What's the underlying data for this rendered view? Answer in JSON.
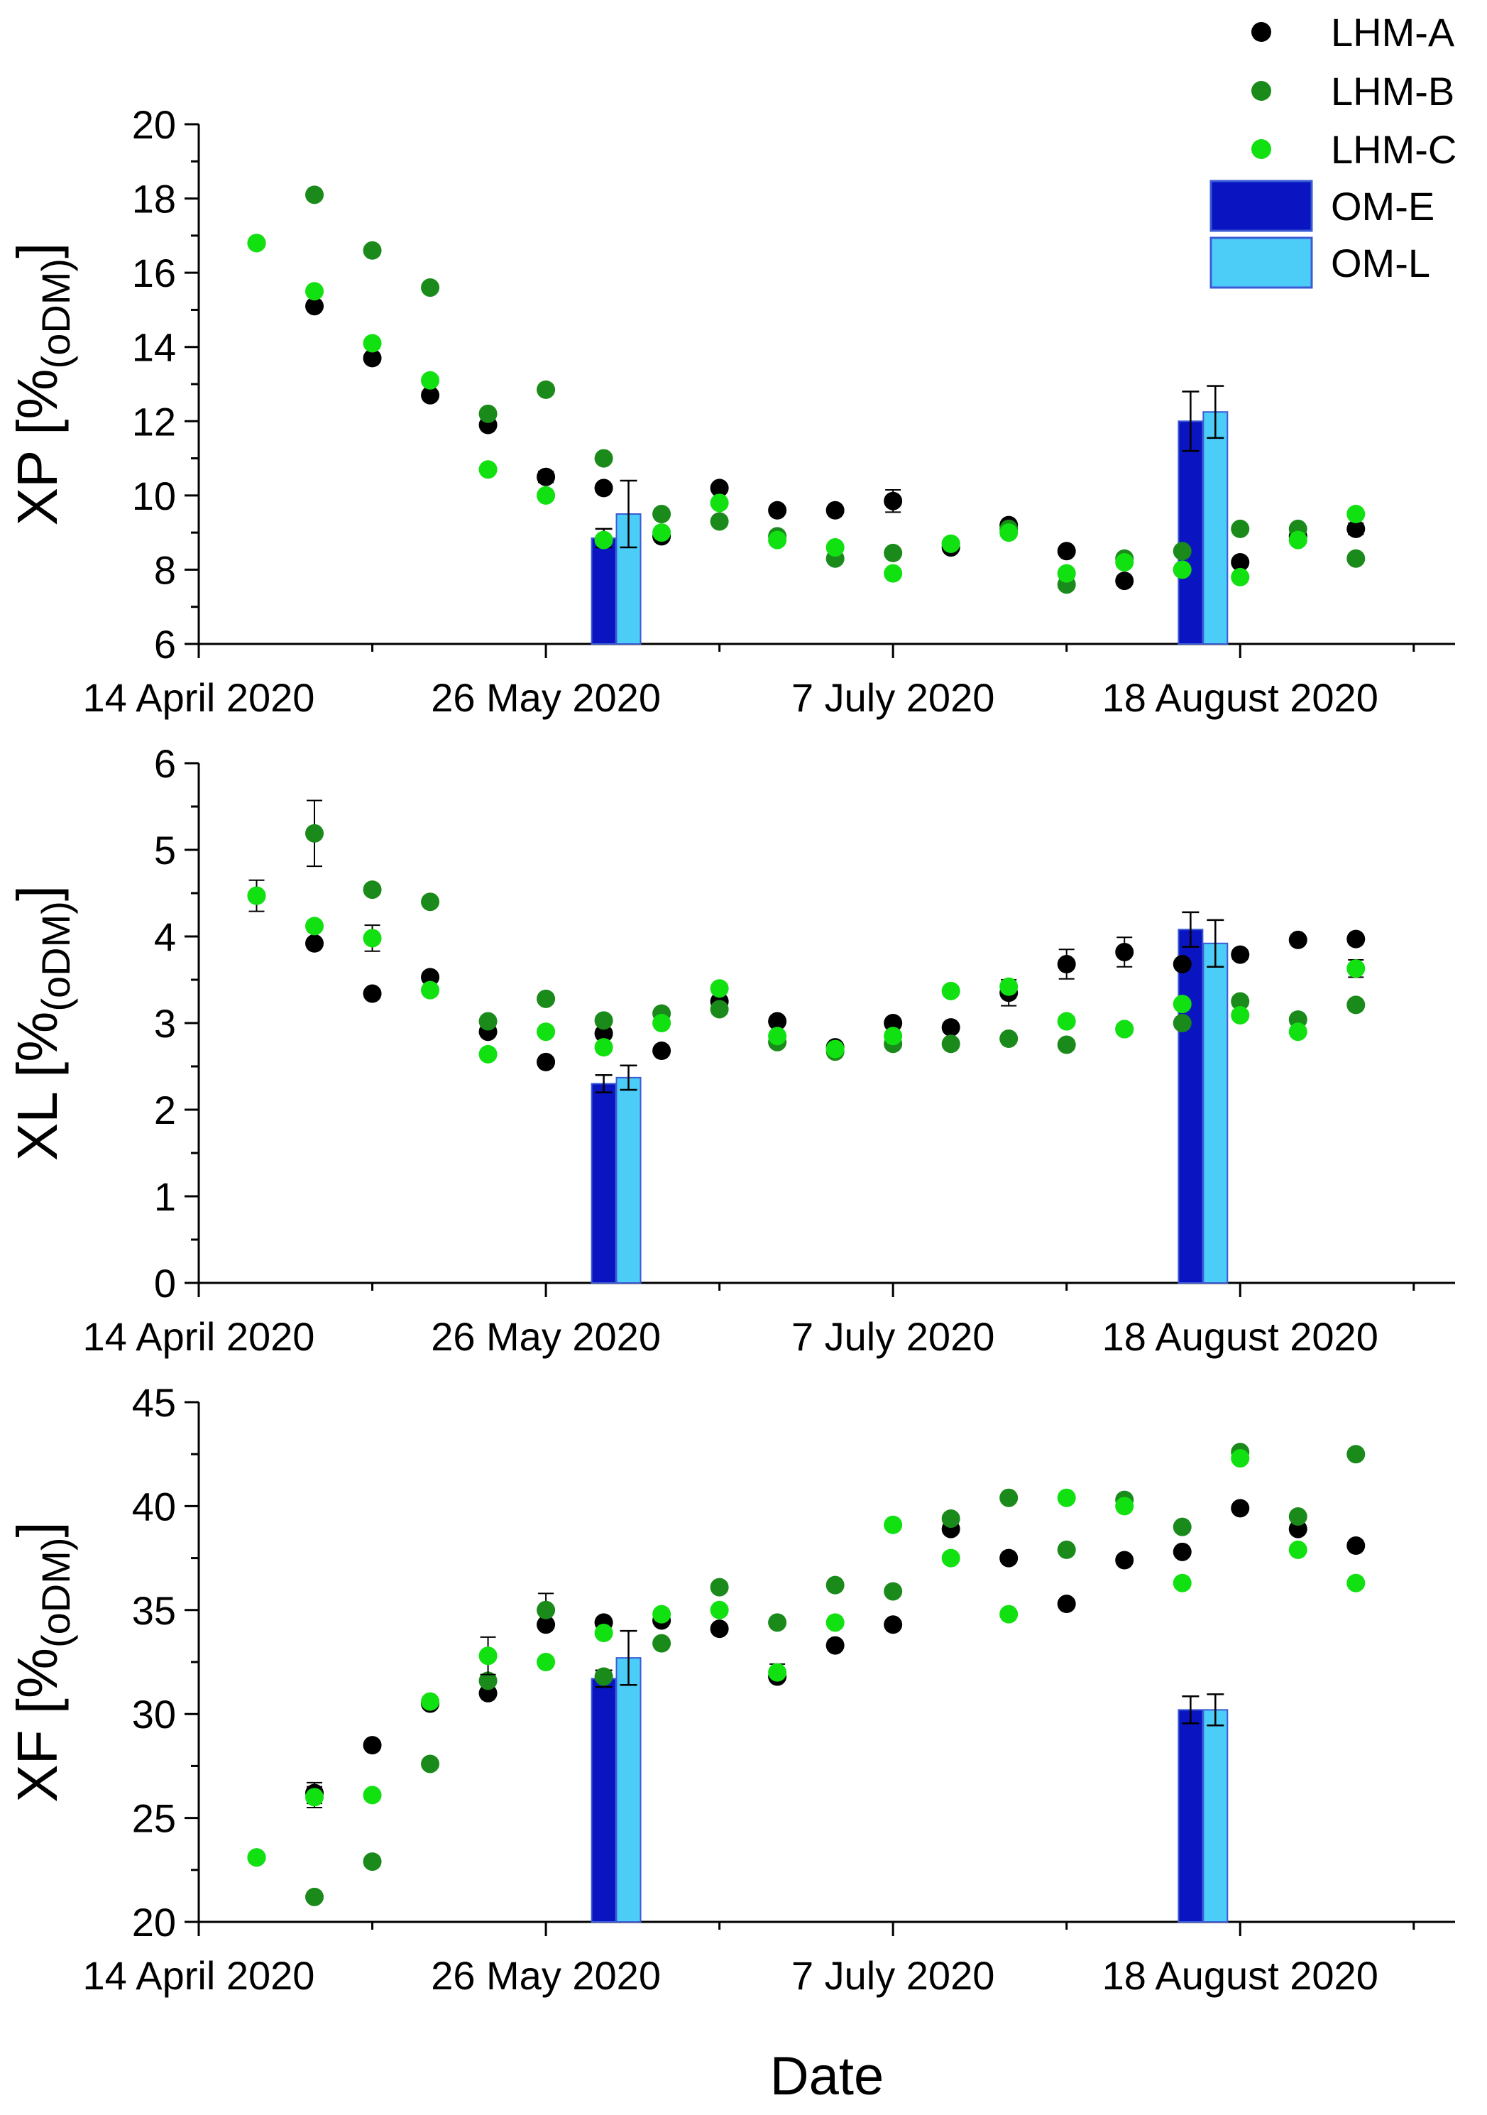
{
  "legend": [
    {
      "label": "LHM-A",
      "kind": "marker",
      "color": "#000000"
    },
    {
      "label": "LHM-B",
      "kind": "marker",
      "color": "#1a8a1a"
    },
    {
      "label": "LHM-C",
      "kind": "marker",
      "color": "#11e011"
    },
    {
      "label": "OM-E",
      "kind": "bar",
      "color": "#0a14c0"
    },
    {
      "label": "OM-L",
      "kind": "bar",
      "color": "#4ccdf8"
    }
  ],
  "colors": {
    "lhm_a": "#000000",
    "lhm_b": "#1a8a1a",
    "lhm_c": "#11e011",
    "om_e": "#0a14c0",
    "om_l": "#4ccdf8",
    "bar_stroke": "#3b5bd6"
  },
  "xlabel": "Date",
  "chart_data": [
    {
      "type": "scatter",
      "name": "XP",
      "ylabel_main": "XP [%",
      "ylabel_sub": "(oDM)",
      "ylabel_end": "]",
      "ylim": [
        6,
        20
      ],
      "yticks": [
        6,
        8,
        10,
        12,
        14,
        16,
        18,
        20
      ],
      "xlim_days": [
        0,
        152
      ],
      "xtick_days": [
        0,
        42,
        84,
        126
      ],
      "xtick_labels": [
        "14 April 2020",
        "26 May 2020",
        "7 July 2020",
        "18 August 2020"
      ],
      "x_days": [
        7,
        14,
        21,
        28,
        35,
        42,
        49,
        56,
        63,
        70,
        77,
        84,
        91,
        98,
        105,
        112,
        119,
        126,
        133,
        140
      ],
      "series": [
        {
          "name": "LHM-A",
          "values": [
            null,
            15.1,
            13.7,
            12.7,
            11.9,
            10.5,
            10.2,
            8.9,
            10.2,
            9.6,
            9.6,
            9.85,
            8.6,
            9.2,
            8.5,
            7.7,
            8.0,
            8.2,
            8.9,
            9.1
          ],
          "errors": [
            0,
            0.1,
            0.1,
            0.1,
            0.1,
            0.15,
            0.1,
            0.1,
            0.1,
            0.1,
            0.1,
            0.3,
            0.1,
            0.1,
            0.1,
            0.1,
            0.1,
            0.1,
            0.1,
            0.15
          ]
        },
        {
          "name": "LHM-B",
          "values": [
            16.8,
            18.1,
            16.6,
            15.6,
            12.2,
            12.85,
            11.0,
            9.5,
            9.3,
            8.9,
            8.3,
            8.45,
            8.7,
            9.1,
            7.6,
            8.3,
            8.5,
            9.1,
            9.1,
            8.3
          ],
          "errors": [
            0.1,
            0.1,
            0.1,
            0.1,
            0.1,
            0.1,
            0.1,
            0.1,
            0.1,
            0.1,
            0.1,
            0.1,
            0.1,
            0.1,
            0.1,
            0.1,
            0.1,
            0.1,
            0.1,
            0.1
          ]
        },
        {
          "name": "LHM-C",
          "values": [
            16.8,
            15.5,
            14.1,
            13.1,
            10.7,
            10.0,
            8.8,
            9.0,
            9.8,
            8.8,
            8.6,
            7.9,
            8.7,
            9.0,
            7.9,
            8.2,
            8.0,
            7.8,
            8.8,
            9.5
          ],
          "errors": [
            0.1,
            0.1,
            0.1,
            0.1,
            0.1,
            0.1,
            0.1,
            0.1,
            0.1,
            0.1,
            0.1,
            0.1,
            0.1,
            0.1,
            0.1,
            0.1,
            0.1,
            0.1,
            0.1,
            0.1
          ]
        }
      ],
      "bars": [
        {
          "name": "OM-E",
          "x_days": 49,
          "value": 8.85,
          "error": 0.25
        },
        {
          "name": "OM-L",
          "x_days": 52,
          "value": 9.5,
          "error": 0.9
        },
        {
          "name": "OM-E",
          "x_days": 120,
          "value": 12.0,
          "error": 0.8
        },
        {
          "name": "OM-L",
          "x_days": 123,
          "value": 12.25,
          "error": 0.7
        }
      ]
    },
    {
      "type": "scatter",
      "name": "XL",
      "ylabel_main": "XL [%",
      "ylabel_sub": "(oDM)",
      "ylabel_end": "]",
      "ylim": [
        0,
        6
      ],
      "yticks": [
        0,
        1,
        2,
        3,
        4,
        5,
        6
      ],
      "xlim_days": [
        0,
        152
      ],
      "xtick_days": [
        0,
        42,
        84,
        126
      ],
      "xtick_labels": [
        "14 April 2020",
        "26 May 2020",
        "7 July 2020",
        "18 August 2020"
      ],
      "x_days": [
        7,
        14,
        21,
        28,
        35,
        42,
        49,
        56,
        63,
        70,
        77,
        84,
        91,
        98,
        105,
        112,
        119,
        126,
        133,
        140
      ],
      "series": [
        {
          "name": "LHM-A",
          "values": [
            null,
            3.92,
            3.34,
            3.53,
            2.9,
            2.55,
            2.88,
            2.68,
            3.25,
            3.02,
            2.72,
            3.0,
            2.95,
            3.35,
            3.68,
            3.82,
            3.68,
            3.79,
            3.96,
            3.97
          ],
          "errors": [
            0,
            0.05,
            0.05,
            0.05,
            0.05,
            0.05,
            0.05,
            0.05,
            0.05,
            0.05,
            0.05,
            0.05,
            0.05,
            0.15,
            0.17,
            0.17,
            0.05,
            0.05,
            0.05,
            0.05
          ]
        },
        {
          "name": "LHM-B",
          "values": [
            4.47,
            5.19,
            4.54,
            4.4,
            3.02,
            3.28,
            3.03,
            3.11,
            3.16,
            2.78,
            2.67,
            2.76,
            2.76,
            2.82,
            2.75,
            2.93,
            3.0,
            3.25,
            3.04,
            3.21
          ],
          "errors": [
            0.05,
            0.38,
            0.05,
            0.05,
            0.05,
            0.05,
            0.05,
            0.05,
            0.05,
            0.05,
            0.05,
            0.05,
            0.05,
            0.05,
            0.05,
            0.05,
            0.05,
            0.05,
            0.05,
            0.05
          ]
        },
        {
          "name": "LHM-C",
          "values": [
            4.47,
            4.12,
            3.98,
            3.38,
            2.64,
            2.9,
            2.72,
            3.0,
            3.4,
            2.85,
            2.7,
            2.85,
            3.37,
            3.42,
            3.02,
            2.93,
            3.22,
            3.09,
            2.9,
            3.63
          ],
          "errors": [
            0.18,
            0.05,
            0.15,
            0.05,
            0.05,
            0.05,
            0.05,
            0.05,
            0.05,
            0.05,
            0.05,
            0.05,
            0.05,
            0.05,
            0.05,
            0.05,
            0.05,
            0.05,
            0.05,
            0.1
          ]
        }
      ],
      "bars": [
        {
          "name": "OM-E",
          "x_days": 49,
          "value": 2.3,
          "error": 0.1
        },
        {
          "name": "OM-L",
          "x_days": 52,
          "value": 2.37,
          "error": 0.14
        },
        {
          "name": "OM-E",
          "x_days": 120,
          "value": 4.08,
          "error": 0.2
        },
        {
          "name": "OM-L",
          "x_days": 123,
          "value": 3.92,
          "error": 0.27
        }
      ]
    },
    {
      "type": "scatter",
      "name": "XF",
      "ylabel_main": "XF [%",
      "ylabel_sub": "(oDM)",
      "ylabel_end": "]",
      "ylim": [
        20,
        45
      ],
      "yticks": [
        20,
        25,
        30,
        35,
        40,
        45
      ],
      "xlim_days": [
        0,
        152
      ],
      "xtick_days": [
        0,
        42,
        84,
        126
      ],
      "xtick_labels": [
        "14 April 2020",
        "26 May 2020",
        "7 July 2020",
        "18 August 2020"
      ],
      "x_days": [
        7,
        14,
        21,
        28,
        35,
        42,
        49,
        56,
        63,
        70,
        77,
        84,
        91,
        98,
        105,
        112,
        119,
        126,
        133,
        140
      ],
      "series": [
        {
          "name": "LHM-A",
          "values": [
            null,
            26.2,
            28.5,
            30.5,
            31.0,
            34.3,
            34.4,
            34.5,
            34.1,
            31.8,
            33.3,
            34.3,
            38.9,
            37.5,
            35.3,
            37.4,
            37.8,
            39.9,
            38.9,
            38.1
          ],
          "errors": [
            0,
            0.5,
            0.15,
            0.15,
            0.15,
            0.15,
            0.15,
            0.15,
            0.15,
            0.15,
            0.15,
            0.15,
            0.15,
            0.15,
            0.15,
            0.15,
            0.15,
            0.15,
            0.15,
            0.15
          ]
        },
        {
          "name": "LHM-B",
          "values": [
            23.1,
            21.2,
            22.9,
            27.6,
            31.6,
            35.0,
            31.8,
            33.4,
            36.1,
            34.4,
            36.2,
            35.9,
            39.4,
            40.4,
            37.9,
            40.3,
            39.0,
            42.6,
            39.5,
            42.5
          ],
          "errors": [
            0.15,
            0.15,
            0.15,
            0.15,
            0.15,
            0.8,
            0.15,
            0.15,
            0.15,
            0.15,
            0.15,
            0.15,
            0.15,
            0.15,
            0.15,
            0.15,
            0.15,
            0.15,
            0.15,
            0.15
          ]
        },
        {
          "name": "LHM-C",
          "values": [
            23.1,
            26.0,
            26.1,
            30.6,
            32.8,
            32.5,
            33.9,
            34.8,
            35.0,
            32.0,
            34.4,
            39.1,
            37.5,
            34.8,
            40.4,
            40.0,
            36.3,
            42.3,
            37.9,
            36.3
          ],
          "errors": [
            0.15,
            0.5,
            0.15,
            0.15,
            0.9,
            0.15,
            0.15,
            0.15,
            0.15,
            0.4,
            0.15,
            0.15,
            0.15,
            0.15,
            0.15,
            0.15,
            0.15,
            0.15,
            0.15,
            0.15
          ]
        }
      ],
      "bars": [
        {
          "name": "OM-E",
          "x_days": 49,
          "value": 31.7,
          "error": 0.4
        },
        {
          "name": "OM-L",
          "x_days": 52,
          "value": 32.7,
          "error": 1.3
        },
        {
          "name": "OM-E",
          "x_days": 120,
          "value": 30.2,
          "error": 0.65
        },
        {
          "name": "OM-L",
          "x_days": 123,
          "value": 30.2,
          "error": 0.75
        }
      ]
    }
  ]
}
